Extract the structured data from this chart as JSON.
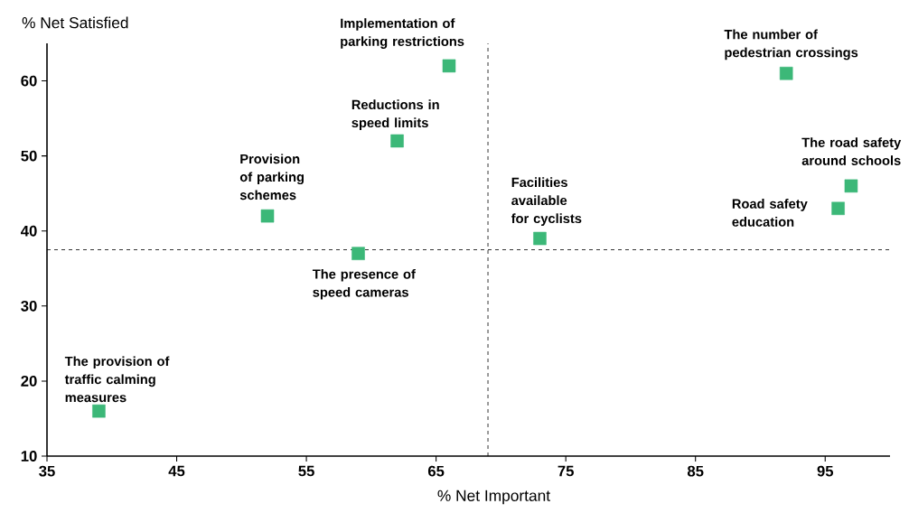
{
  "chart_data": {
    "type": "scatter",
    "xlabel": "% Net Important",
    "ylabel": "% Net Satisfied",
    "x": [
      39,
      52,
      59,
      62,
      66,
      73,
      92,
      96,
      97
    ],
    "values": [
      16,
      42,
      37,
      52,
      62,
      39,
      61,
      43,
      46
    ],
    "color": "#3cb878",
    "marker": "square",
    "xlim": [
      35,
      100
    ],
    "ylim": [
      10,
      65
    ],
    "xticks": [
      35,
      45,
      55,
      65,
      75,
      85,
      95
    ],
    "yticks": [
      10,
      20,
      30,
      40,
      50,
      60
    ],
    "ref_lines": [
      {
        "axis": "x",
        "value": 69,
        "line_style": "dashed"
      },
      {
        "axis": "y",
        "value": 37.5,
        "line_style": "dashed"
      }
    ],
    "annotations": [
      {
        "text": "The provision of traffic calming measures",
        "x": 39,
        "y": 16
      },
      {
        "text": "Provision of parking schemes",
        "x": 52,
        "y": 42
      },
      {
        "text": "The presence of speed cameras",
        "x": 59,
        "y": 37
      },
      {
        "text": "Reductions in speed limits",
        "x": 62,
        "y": 52
      },
      {
        "text": "Implementation of parking restrictions",
        "x": 66,
        "y": 62
      },
      {
        "text": "Facilities available for cyclists",
        "x": 73,
        "y": 39
      },
      {
        "text": "The number of pedestrian crossings",
        "x": 92,
        "y": 61
      },
      {
        "text": "The road safety around schools",
        "x": 97,
        "y": 46
      },
      {
        "text": "Road safety education",
        "x": 96,
        "y": 43
      }
    ]
  }
}
